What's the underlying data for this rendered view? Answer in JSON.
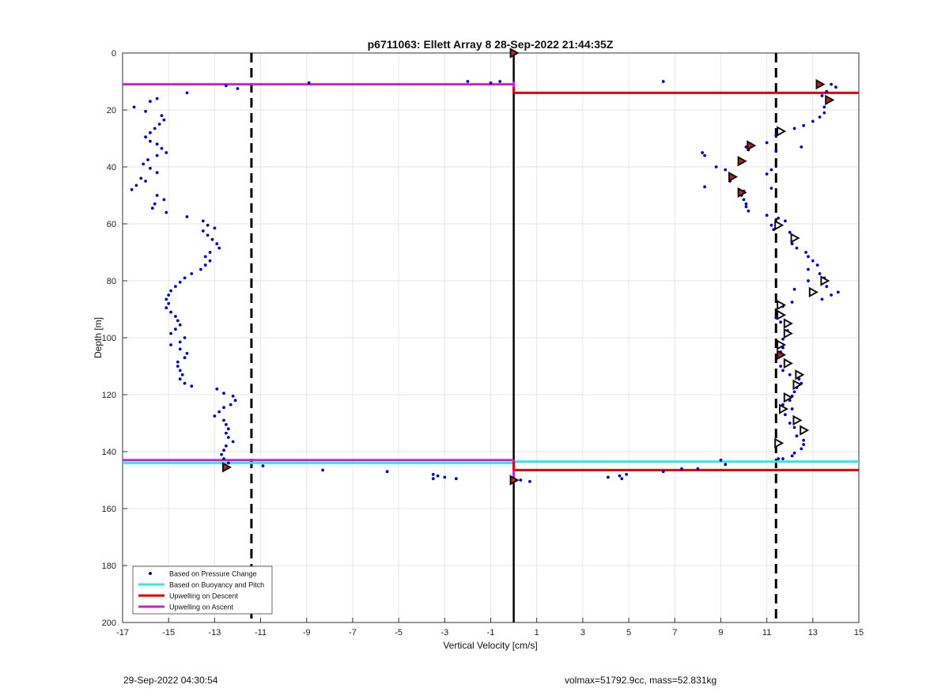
{
  "footer": {
    "timestamp": "29-Sep-2022 04:30:54",
    "vol_mass": "volmax=51792.9cc, mass=52.831kg"
  },
  "chart_data": {
    "type": "scatter",
    "title": "p6711063: Ellett Array 8 28-Sep-2022 21:44:35Z",
    "xlabel": "Vertical Velocity [cm/s]",
    "ylabel": "Depth [m]",
    "xlim": [
      -17,
      15
    ],
    "ylim": [
      0,
      200
    ],
    "y_reversed": true,
    "grid": true,
    "legend_position": "bottom-left",
    "x_ticks": [
      -17,
      -15,
      -13,
      -11,
      -9,
      -7,
      -5,
      -3,
      -1,
      1,
      3,
      5,
      7,
      9,
      11,
      13,
      15
    ],
    "y_ticks": [
      0,
      20,
      40,
      60,
      80,
      100,
      120,
      140,
      160,
      180,
      200
    ],
    "colors": {
      "pressure": "#0000cc",
      "buoyancy": "#33e6e6",
      "descent": "#dd0000",
      "ascent": "#cc22cc",
      "markers": "#111111"
    },
    "legend": [
      {
        "name": "Based on Pressure Change",
        "style": "dot",
        "color": "#0000cc"
      },
      {
        "name": "Based on Buoyancy and Pitch",
        "style": "line",
        "color": "#33e6e6"
      },
      {
        "name": "Upwelling on Descent",
        "style": "line",
        "color": "#dd0000"
      },
      {
        "name": "Upwelling on Ascent",
        "style": "line",
        "color": "#cc22cc"
      }
    ],
    "pressure_points": {
      "ascent": [
        [
          0.0,
          0
        ],
        [
          -0.6,
          10
        ],
        [
          -1.0,
          10.5
        ],
        [
          -2.0,
          10
        ],
        [
          -8.9,
          10.5
        ],
        [
          -12.5,
          11.5
        ],
        [
          -12.0,
          12.5
        ],
        [
          -14.2,
          14
        ],
        [
          -15.5,
          16
        ],
        [
          -15.8,
          17
        ],
        [
          -16.5,
          19
        ],
        [
          -16,
          20.5
        ],
        [
          -15.3,
          22
        ],
        [
          -15.2,
          23.5
        ],
        [
          -15.4,
          25
        ],
        [
          -15.6,
          26.5
        ],
        [
          -15.8,
          28
        ],
        [
          -16.0,
          29.5
        ],
        [
          -15.8,
          31
        ],
        [
          -15.5,
          32
        ],
        [
          -15.3,
          33.5
        ],
        [
          -15.1,
          35
        ],
        [
          -15.5,
          36
        ],
        [
          -15.9,
          37.5
        ],
        [
          -16.1,
          39
        ],
        [
          -15.8,
          40.5
        ],
        [
          -15.5,
          42
        ],
        [
          -16.2,
          44
        ],
        [
          -16.0,
          45
        ],
        [
          -16.4,
          46.5
        ],
        [
          -16.6,
          48
        ],
        [
          -15.5,
          50
        ],
        [
          -15.2,
          51.5
        ],
        [
          -15.6,
          53
        ],
        [
          -15.7,
          54.5
        ],
        [
          -15.1,
          56
        ],
        [
          -14.2,
          57.5
        ],
        [
          -13.5,
          59
        ],
        [
          -13.3,
          60.5
        ],
        [
          -13.0,
          61.5
        ],
        [
          -13.5,
          62.5
        ],
        [
          -13.3,
          64
        ],
        [
          -13.1,
          65.5
        ],
        [
          -12.9,
          67
        ],
        [
          -12.8,
          68.5
        ],
        [
          -13.2,
          70
        ],
        [
          -13.4,
          71.5
        ],
        [
          -13.2,
          73
        ],
        [
          -13.4,
          74.5
        ],
        [
          -13.6,
          76
        ],
        [
          -14.0,
          77.5
        ],
        [
          -14.3,
          79
        ],
        [
          -14.5,
          80.5
        ],
        [
          -14.7,
          82
        ],
        [
          -14.9,
          83.5
        ],
        [
          -15.0,
          85
        ],
        [
          -15.1,
          86.5
        ],
        [
          -15.0,
          88
        ],
        [
          -15.1,
          89.5
        ],
        [
          -14.9,
          91
        ],
        [
          -14.7,
          92.5
        ],
        [
          -14.6,
          94
        ],
        [
          -14.5,
          95.5
        ],
        [
          -14.7,
          97
        ],
        [
          -14.9,
          98.5
        ],
        [
          -14.3,
          100
        ],
        [
          -14.5,
          101.5
        ],
        [
          -14.9,
          102.5
        ],
        [
          -14.5,
          104
        ],
        [
          -14.2,
          105.5
        ],
        [
          -14.3,
          107
        ],
        [
          -14.6,
          108.5
        ],
        [
          -14.6,
          110
        ],
        [
          -14.5,
          111.5
        ],
        [
          -14.4,
          113
        ],
        [
          -14.5,
          114.5
        ],
        [
          -14.3,
          116
        ],
        [
          -14.0,
          117
        ],
        [
          -12.9,
          118
        ],
        [
          -12.6,
          119.5
        ],
        [
          -12.2,
          120.5
        ],
        [
          -12.1,
          122
        ],
        [
          -12.3,
          123.5
        ],
        [
          -12.6,
          124.5
        ],
        [
          -12.8,
          126
        ],
        [
          -13.0,
          127.5
        ],
        [
          -12.6,
          129
        ],
        [
          -12.5,
          130.5
        ],
        [
          -12.4,
          132
        ],
        [
          -12.5,
          133.5
        ],
        [
          -12.4,
          135
        ],
        [
          -12.2,
          136.5
        ],
        [
          -12.5,
          138
        ],
        [
          -12.6,
          139.5
        ],
        [
          -12.7,
          141
        ],
        [
          -12.6,
          142.5
        ],
        [
          -12.4,
          144
        ],
        [
          -12.5,
          145.5
        ],
        [
          -12.5,
          146
        ],
        [
          -10.9,
          145
        ],
        [
          -8.3,
          146.5
        ],
        [
          -5.5,
          147
        ],
        [
          -3.5,
          148
        ],
        [
          -3.3,
          148.5
        ],
        [
          -3.0,
          149
        ],
        [
          -2.5,
          149.5
        ],
        [
          -3.5,
          149.5
        ],
        [
          0.3,
          150
        ],
        [
          0.7,
          150.5
        ]
      ],
      "descent": [
        [
          6.5,
          10
        ],
        [
          13.8,
          11
        ],
        [
          14.0,
          12
        ],
        [
          13.2,
          11
        ],
        [
          13.6,
          13.5
        ],
        [
          13.4,
          15
        ],
        [
          13.6,
          17.5
        ],
        [
          13.5,
          19
        ],
        [
          13.5,
          21
        ],
        [
          13.3,
          22.5
        ],
        [
          13.0,
          24
        ],
        [
          12.6,
          25.5
        ],
        [
          12.2,
          26.5
        ],
        [
          11.7,
          27.5
        ],
        [
          11.4,
          29
        ],
        [
          11.0,
          31.5
        ],
        [
          10.3,
          32
        ],
        [
          10.1,
          33
        ],
        [
          10.2,
          34
        ],
        [
          12.5,
          33
        ],
        [
          11.4,
          34.5
        ],
        [
          8.2,
          35
        ],
        [
          8.3,
          36
        ],
        [
          9.8,
          38
        ],
        [
          8.8,
          40
        ],
        [
          9.2,
          41
        ],
        [
          11.2,
          41
        ],
        [
          11.0,
          42.5
        ],
        [
          9.6,
          43.5
        ],
        [
          9.4,
          45
        ],
        [
          8.3,
          47
        ],
        [
          11.2,
          47.5
        ],
        [
          10.0,
          48.5
        ],
        [
          9.9,
          50
        ],
        [
          10.0,
          51.5
        ],
        [
          10.1,
          53
        ],
        [
          10.1,
          54
        ],
        [
          10.2,
          55.5
        ],
        [
          11.0,
          57
        ],
        [
          11.5,
          58
        ],
        [
          11.8,
          59
        ],
        [
          11.2,
          60.5
        ],
        [
          11.3,
          62
        ],
        [
          12.0,
          63
        ],
        [
          12.3,
          65
        ],
        [
          12.1,
          67
        ],
        [
          12.3,
          68.5
        ],
        [
          12.7,
          70
        ],
        [
          12.8,
          71.5
        ],
        [
          13.0,
          73
        ],
        [
          13.2,
          74.5
        ],
        [
          12.8,
          76
        ],
        [
          13.3,
          77.5
        ],
        [
          13.5,
          79
        ],
        [
          12.8,
          80
        ],
        [
          13.6,
          82
        ],
        [
          12.2,
          83
        ],
        [
          14.1,
          84
        ],
        [
          13.8,
          85
        ],
        [
          13.4,
          86.5
        ],
        [
          12.1,
          87.5
        ],
        [
          11.7,
          89
        ],
        [
          11.5,
          91
        ],
        [
          11.4,
          93
        ],
        [
          11.6,
          94.5
        ],
        [
          11.8,
          96
        ],
        [
          11.9,
          97.5
        ],
        [
          11.8,
          99
        ],
        [
          11.7,
          100.5
        ],
        [
          11.5,
          102
        ],
        [
          11.7,
          103.5
        ],
        [
          11.6,
          105
        ],
        [
          11.5,
          106.5
        ],
        [
          11.8,
          108
        ],
        [
          11.6,
          110
        ],
        [
          11.7,
          111.5
        ],
        [
          12.0,
          113
        ],
        [
          12.4,
          114.5
        ],
        [
          12.5,
          116
        ],
        [
          12.3,
          117.5
        ],
        [
          12.2,
          119
        ],
        [
          12.1,
          120.5
        ],
        [
          12.0,
          122
        ],
        [
          11.7,
          123.5
        ],
        [
          12.1,
          125
        ],
        [
          11.8,
          127
        ],
        [
          12.3,
          128.5
        ],
        [
          12.0,
          130
        ],
        [
          12.2,
          131.5
        ],
        [
          12.5,
          133
        ],
        [
          12.3,
          134.5
        ],
        [
          12.6,
          136
        ],
        [
          12.6,
          137.5
        ],
        [
          12.5,
          139
        ],
        [
          12.2,
          140.5
        ],
        [
          12.1,
          141.5
        ],
        [
          11.7,
          142.5
        ],
        [
          9.0,
          143
        ],
        [
          9.2,
          144.5
        ],
        [
          11.5,
          142.5
        ],
        [
          8.0,
          146
        ],
        [
          7.3,
          146
        ],
        [
          6.5,
          147
        ],
        [
          4.9,
          148
        ],
        [
          4.6,
          148.5
        ],
        [
          4.1,
          149
        ],
        [
          4.7,
          149.5
        ]
      ]
    },
    "marker_points": {
      "filled": [
        [
          0,
          0
        ],
        [
          13.3,
          11
        ],
        [
          13.7,
          16.5
        ],
        [
          10.3,
          32.5
        ],
        [
          9.9,
          38
        ],
        [
          9.5,
          43.5
        ],
        [
          9.9,
          49
        ],
        [
          11.6,
          106
        ],
        [
          -12.5,
          145.5
        ],
        [
          0,
          150
        ]
      ],
      "open": [
        [
          11.6,
          27.5
        ],
        [
          11.5,
          60.5
        ],
        [
          12.2,
          65
        ],
        [
          13.5,
          80
        ],
        [
          13.0,
          84
        ],
        [
          11.6,
          88.5
        ],
        [
          11.6,
          92
        ],
        [
          11.9,
          95
        ],
        [
          11.9,
          98.5
        ],
        [
          11.6,
          102.5
        ],
        [
          11.9,
          109
        ],
        [
          12.4,
          113
        ],
        [
          12.3,
          116.5
        ],
        [
          11.9,
          121
        ],
        [
          11.7,
          125
        ],
        [
          12.3,
          129
        ],
        [
          12.6,
          132.5
        ],
        [
          11.5,
          137
        ]
      ]
    },
    "reference_lines": {
      "vertical_dashed_x": [
        -11.4,
        11.4
      ],
      "vertical_solid_x": 0
    },
    "horizontal_lines": [
      {
        "series": "Upwelling on Ascent",
        "y": 11,
        "x_from": -17,
        "x_to": 0
      },
      {
        "series": "Upwelling on Descent",
        "y": 14,
        "x_from": 0,
        "x_to": 15
      },
      {
        "series": "Upwelling on Ascent",
        "y": 143,
        "x_from": -17,
        "x_to": 0
      },
      {
        "series": "Based on Buoyancy and Pitch",
        "y": 144,
        "x_from": -17,
        "x_to": 0
      },
      {
        "series": "Based on Buoyancy and Pitch",
        "y": 143.5,
        "x_from": 0,
        "x_to": 15
      },
      {
        "series": "Upwelling on Descent",
        "y": 146.5,
        "x_from": 0,
        "x_to": 15
      }
    ],
    "vertical_segments": [
      {
        "series": "Upwelling on Ascent",
        "x": 0,
        "y_from": 10,
        "y_to": 12
      },
      {
        "series": "Upwelling on Descent",
        "x": 0,
        "y_from": 12,
        "y_to": 14
      },
      {
        "series": "Upwelling on Ascent",
        "x": 0,
        "y_from": 143,
        "y_to": 150
      },
      {
        "series": "Upwelling on Descent",
        "x": 0,
        "y_from": 143.5,
        "y_to": 146.5
      }
    ]
  }
}
